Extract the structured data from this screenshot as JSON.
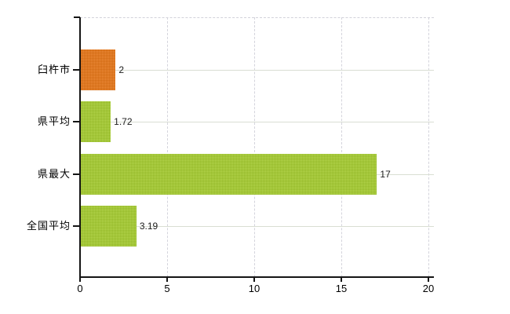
{
  "chart_data": {
    "type": "bar",
    "orientation": "horizontal",
    "title": "",
    "xlabel": "",
    "ylabel": "",
    "categories": [
      "臼杵市",
      "県平均",
      "県最大",
      "全国平均"
    ],
    "values": [
      2,
      1.72,
      17,
      3.19
    ],
    "value_labels": [
      "2",
      "1.72",
      "17",
      "3.19"
    ],
    "bar_colors": [
      "#e2761b",
      "#a4c933",
      "#a4c933",
      "#a4c933"
    ],
    "xlim": [
      0,
      20
    ],
    "xticks": [
      0,
      5,
      10,
      15,
      20
    ],
    "xtick_labels": [
      "0",
      "5",
      "10",
      "15",
      "20"
    ],
    "grid": true,
    "legend": false
  },
  "colors": {
    "bar_highlight": "#e2761b",
    "bar_default": "#a4c933",
    "axis": "#151515",
    "grid_vertical": "#d4d4dc",
    "grid_horizontal": "#d9ded3",
    "text": "#000000"
  }
}
